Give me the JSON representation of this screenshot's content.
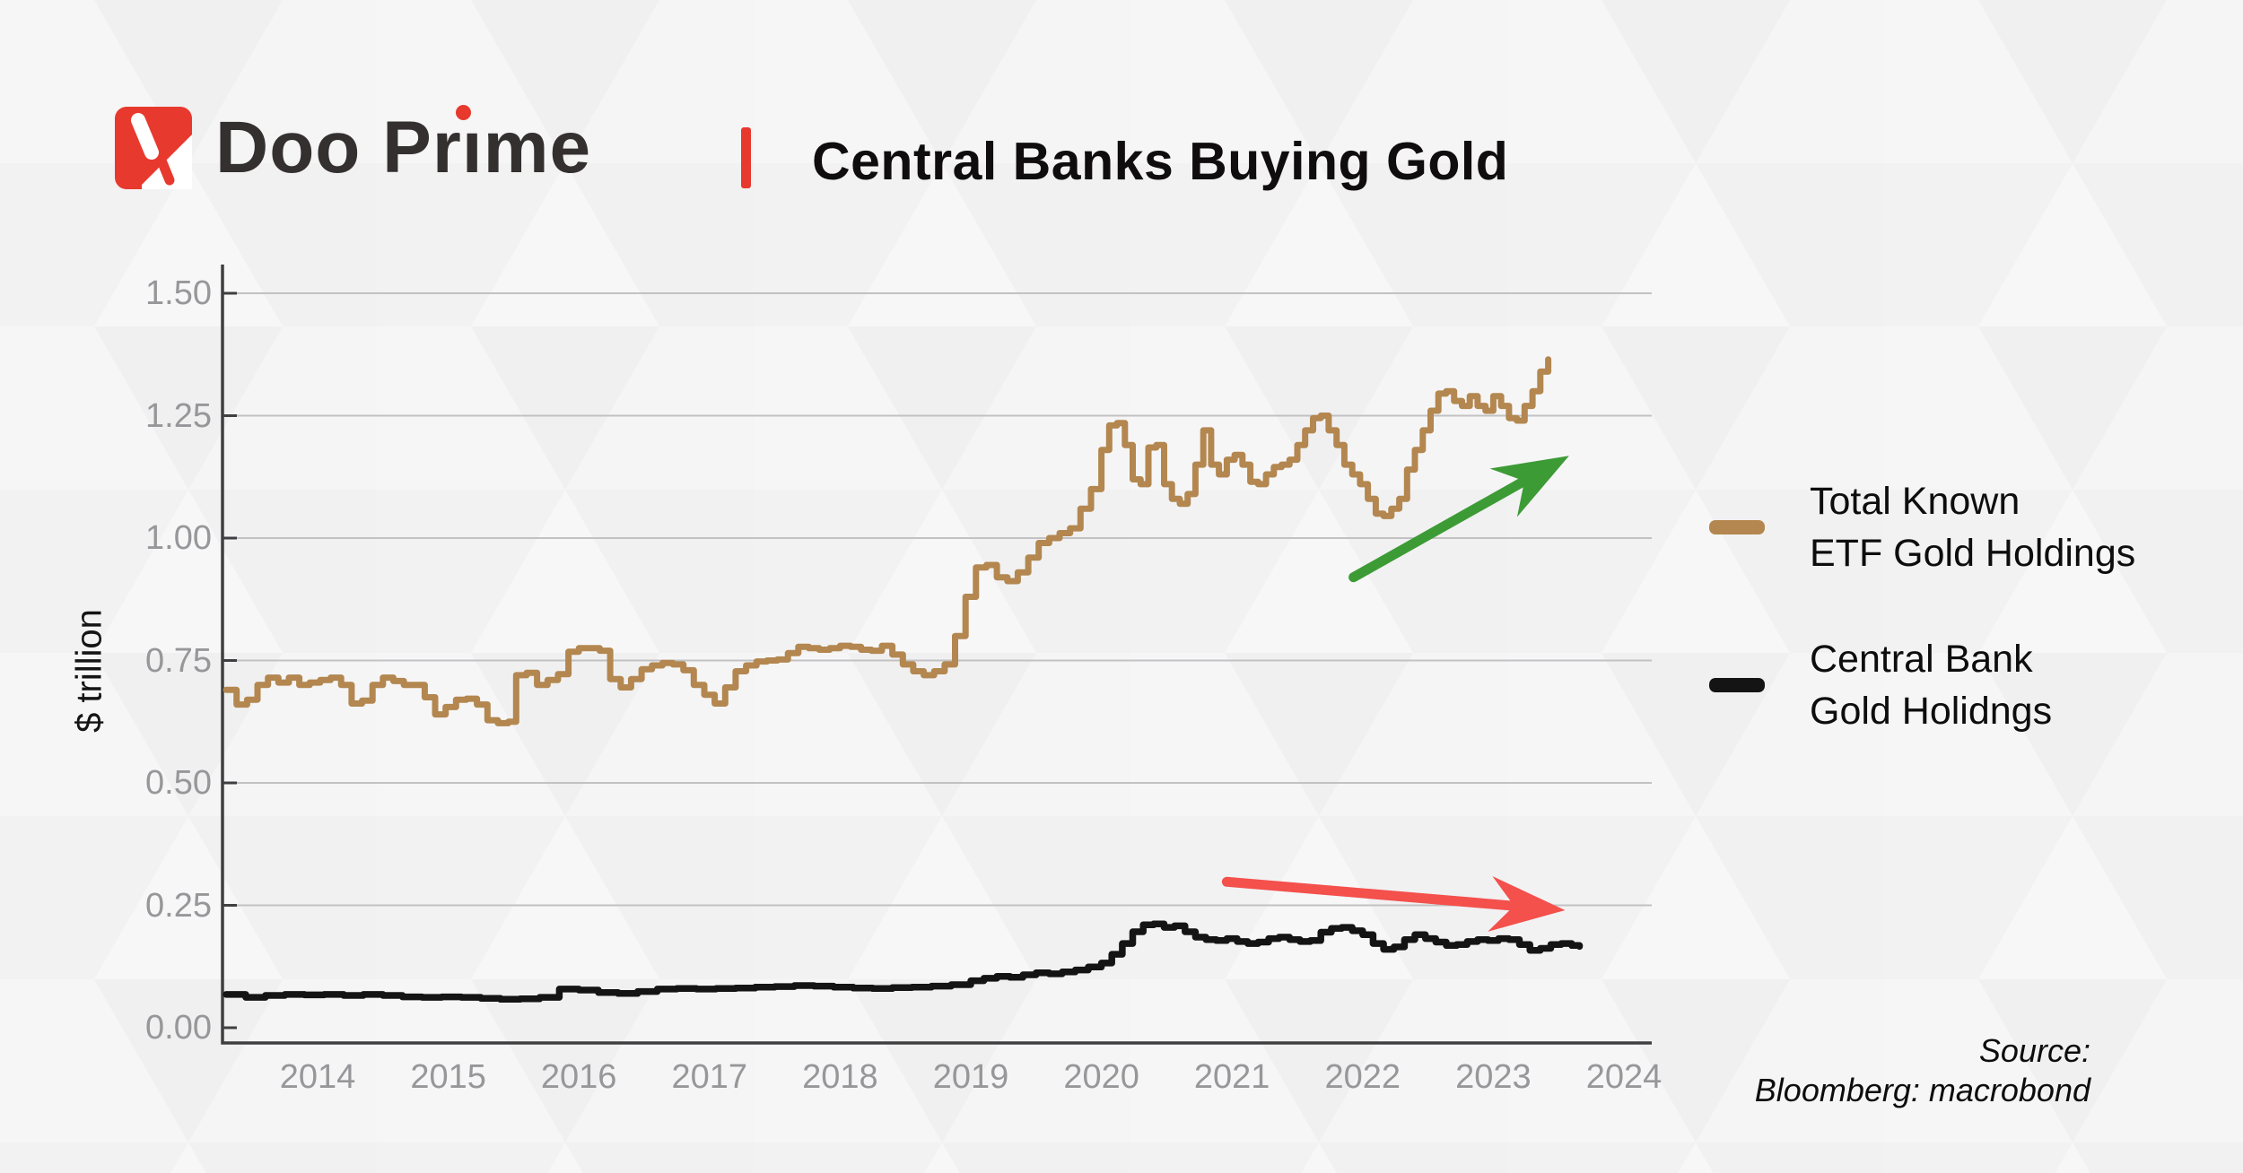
{
  "brand": {
    "name": "Doo Prime",
    "name_parts": {
      "pre": "Doo Pr",
      "dotless_i": "ı",
      "post": "me"
    }
  },
  "header": {
    "title": "Central Banks Buying Gold"
  },
  "source": {
    "line1": "Source:",
    "line2": "Bloomberg: macrobond"
  },
  "legend": {
    "items": [
      {
        "label_line1": "Total Known",
        "label_line2": "ETF Gold Holdings",
        "color": "#b3874f"
      },
      {
        "label_line1": "Central Bank",
        "label_line2": "Gold Holidngs",
        "color": "#141414"
      }
    ]
  },
  "chart_data": {
    "type": "line",
    "title": "Central Banks Buying Gold",
    "xlabel": "",
    "ylabel": "$ trillion",
    "ylim": [
      0,
      1.5
    ],
    "xlim": [
      2013.25,
      2024.2
    ],
    "grid": "horizontal",
    "legend_position": "right",
    "y_ticks": [
      "1.50",
      "1.25",
      "1.00",
      "0.75",
      "0.50",
      "0.25",
      "0.00"
    ],
    "x_ticks": [
      "2014",
      "2015",
      "2016",
      "2017",
      "2018",
      "2019",
      "2020",
      "2021",
      "2022",
      "2023",
      "2024"
    ],
    "colors": {
      "axis": "#3f3f41",
      "gridline": "#c2c2c4",
      "tick_label": "#97979a",
      "arrow_up": "#3d9b35",
      "arrow_down": "#f4504c",
      "brand_red": "#e8392e",
      "brand_dark": "#343030"
    },
    "series": [
      {
        "name": "Total Known ETF Gold Holdings",
        "color": "#b3874f",
        "width": 7,
        "points": [
          [
            2013.3,
            0.69
          ],
          [
            2013.38,
            0.66
          ],
          [
            2013.46,
            0.67
          ],
          [
            2013.54,
            0.7
          ],
          [
            2013.62,
            0.715
          ],
          [
            2013.7,
            0.705
          ],
          [
            2013.78,
            0.715
          ],
          [
            2013.86,
            0.7
          ],
          [
            2013.94,
            0.705
          ],
          [
            2014.02,
            0.71
          ],
          [
            2014.1,
            0.715
          ],
          [
            2014.18,
            0.7
          ],
          [
            2014.26,
            0.662
          ],
          [
            2014.34,
            0.668
          ],
          [
            2014.42,
            0.7
          ],
          [
            2014.5,
            0.715
          ],
          [
            2014.58,
            0.708
          ],
          [
            2014.66,
            0.7
          ],
          [
            2014.74,
            0.7
          ],
          [
            2014.82,
            0.675
          ],
          [
            2014.9,
            0.64
          ],
          [
            2014.98,
            0.655
          ],
          [
            2015.06,
            0.67
          ],
          [
            2015.14,
            0.672
          ],
          [
            2015.22,
            0.66
          ],
          [
            2015.3,
            0.628
          ],
          [
            2015.38,
            0.622
          ],
          [
            2015.46,
            0.625
          ],
          [
            2015.52,
            0.72
          ],
          [
            2015.6,
            0.725
          ],
          [
            2015.68,
            0.7
          ],
          [
            2015.76,
            0.71
          ],
          [
            2015.84,
            0.722
          ],
          [
            2015.92,
            0.768
          ],
          [
            2016.0,
            0.775
          ],
          [
            2016.08,
            0.775
          ],
          [
            2016.16,
            0.77
          ],
          [
            2016.24,
            0.712
          ],
          [
            2016.32,
            0.695
          ],
          [
            2016.4,
            0.712
          ],
          [
            2016.48,
            0.732
          ],
          [
            2016.56,
            0.74
          ],
          [
            2016.64,
            0.745
          ],
          [
            2016.72,
            0.742
          ],
          [
            2016.8,
            0.73
          ],
          [
            2016.88,
            0.7
          ],
          [
            2016.96,
            0.68
          ],
          [
            2017.04,
            0.662
          ],
          [
            2017.12,
            0.695
          ],
          [
            2017.2,
            0.728
          ],
          [
            2017.28,
            0.74
          ],
          [
            2017.36,
            0.748
          ],
          [
            2017.44,
            0.75
          ],
          [
            2017.52,
            0.752
          ],
          [
            2017.6,
            0.765
          ],
          [
            2017.68,
            0.778
          ],
          [
            2017.76,
            0.775
          ],
          [
            2017.84,
            0.772
          ],
          [
            2017.92,
            0.775
          ],
          [
            2018.0,
            0.78
          ],
          [
            2018.08,
            0.778
          ],
          [
            2018.16,
            0.772
          ],
          [
            2018.24,
            0.77
          ],
          [
            2018.32,
            0.78
          ],
          [
            2018.4,
            0.762
          ],
          [
            2018.48,
            0.742
          ],
          [
            2018.56,
            0.728
          ],
          [
            2018.64,
            0.72
          ],
          [
            2018.72,
            0.728
          ],
          [
            2018.8,
            0.742
          ],
          [
            2018.88,
            0.8
          ],
          [
            2018.96,
            0.88
          ],
          [
            2019.04,
            0.94
          ],
          [
            2019.12,
            0.945
          ],
          [
            2019.2,
            0.92
          ],
          [
            2019.28,
            0.912
          ],
          [
            2019.36,
            0.93
          ],
          [
            2019.44,
            0.96
          ],
          [
            2019.52,
            0.99
          ],
          [
            2019.6,
            1.0
          ],
          [
            2019.68,
            1.01
          ],
          [
            2019.76,
            1.02
          ],
          [
            2019.84,
            1.06
          ],
          [
            2019.92,
            1.1
          ],
          [
            2020.0,
            1.18
          ],
          [
            2020.06,
            1.23
          ],
          [
            2020.12,
            1.235
          ],
          [
            2020.18,
            1.19
          ],
          [
            2020.24,
            1.12
          ],
          [
            2020.3,
            1.11
          ],
          [
            2020.36,
            1.185
          ],
          [
            2020.42,
            1.19
          ],
          [
            2020.48,
            1.11
          ],
          [
            2020.54,
            1.08
          ],
          [
            2020.6,
            1.07
          ],
          [
            2020.66,
            1.09
          ],
          [
            2020.72,
            1.15
          ],
          [
            2020.78,
            1.22
          ],
          [
            2020.84,
            1.15
          ],
          [
            2020.9,
            1.13
          ],
          [
            2020.96,
            1.16
          ],
          [
            2021.02,
            1.17
          ],
          [
            2021.08,
            1.15
          ],
          [
            2021.14,
            1.115
          ],
          [
            2021.2,
            1.11
          ],
          [
            2021.26,
            1.13
          ],
          [
            2021.32,
            1.145
          ],
          [
            2021.38,
            1.15
          ],
          [
            2021.44,
            1.16
          ],
          [
            2021.5,
            1.19
          ],
          [
            2021.56,
            1.22
          ],
          [
            2021.62,
            1.245
          ],
          [
            2021.68,
            1.25
          ],
          [
            2021.74,
            1.22
          ],
          [
            2021.8,
            1.19
          ],
          [
            2021.86,
            1.15
          ],
          [
            2021.92,
            1.13
          ],
          [
            2021.98,
            1.11
          ],
          [
            2022.04,
            1.08
          ],
          [
            2022.1,
            1.05
          ],
          [
            2022.16,
            1.045
          ],
          [
            2022.22,
            1.06
          ],
          [
            2022.28,
            1.08
          ],
          [
            2022.34,
            1.14
          ],
          [
            2022.4,
            1.18
          ],
          [
            2022.46,
            1.22
          ],
          [
            2022.52,
            1.26
          ],
          [
            2022.58,
            1.295
          ],
          [
            2022.64,
            1.3
          ],
          [
            2022.7,
            1.28
          ],
          [
            2022.76,
            1.27
          ],
          [
            2022.82,
            1.29
          ],
          [
            2022.88,
            1.27
          ],
          [
            2022.94,
            1.26
          ],
          [
            2023.0,
            1.29
          ],
          [
            2023.06,
            1.27
          ],
          [
            2023.12,
            1.245
          ],
          [
            2023.18,
            1.24
          ],
          [
            2023.24,
            1.27
          ],
          [
            2023.3,
            1.3
          ],
          [
            2023.36,
            1.34
          ],
          [
            2023.42,
            1.365
          ]
        ]
      },
      {
        "name": "Central Bank Gold Holidngs",
        "color": "#141414",
        "width": 7.5,
        "points": [
          [
            2013.3,
            0.068
          ],
          [
            2013.45,
            0.062
          ],
          [
            2013.6,
            0.066
          ],
          [
            2013.75,
            0.068
          ],
          [
            2013.9,
            0.067
          ],
          [
            2014.05,
            0.068
          ],
          [
            2014.2,
            0.066
          ],
          [
            2014.35,
            0.068
          ],
          [
            2014.5,
            0.066
          ],
          [
            2014.65,
            0.063
          ],
          [
            2014.8,
            0.062
          ],
          [
            2014.95,
            0.063
          ],
          [
            2015.1,
            0.062
          ],
          [
            2015.25,
            0.06
          ],
          [
            2015.4,
            0.058
          ],
          [
            2015.55,
            0.059
          ],
          [
            2015.7,
            0.062
          ],
          [
            2015.85,
            0.079
          ],
          [
            2016.0,
            0.077
          ],
          [
            2016.15,
            0.072
          ],
          [
            2016.3,
            0.07
          ],
          [
            2016.45,
            0.074
          ],
          [
            2016.6,
            0.079
          ],
          [
            2016.75,
            0.08
          ],
          [
            2016.9,
            0.079
          ],
          [
            2017.05,
            0.08
          ],
          [
            2017.2,
            0.081
          ],
          [
            2017.35,
            0.083
          ],
          [
            2017.5,
            0.084
          ],
          [
            2017.65,
            0.086
          ],
          [
            2017.8,
            0.085
          ],
          [
            2017.95,
            0.083
          ],
          [
            2018.1,
            0.081
          ],
          [
            2018.25,
            0.08
          ],
          [
            2018.4,
            0.082
          ],
          [
            2018.55,
            0.083
          ],
          [
            2018.7,
            0.085
          ],
          [
            2018.85,
            0.088
          ],
          [
            2019.0,
            0.096
          ],
          [
            2019.1,
            0.101
          ],
          [
            2019.2,
            0.105
          ],
          [
            2019.3,
            0.103
          ],
          [
            2019.4,
            0.108
          ],
          [
            2019.5,
            0.112
          ],
          [
            2019.6,
            0.11
          ],
          [
            2019.7,
            0.114
          ],
          [
            2019.8,
            0.118
          ],
          [
            2019.9,
            0.124
          ],
          [
            2020.0,
            0.132
          ],
          [
            2020.08,
            0.15
          ],
          [
            2020.16,
            0.172
          ],
          [
            2020.24,
            0.196
          ],
          [
            2020.32,
            0.21
          ],
          [
            2020.4,
            0.212
          ],
          [
            2020.48,
            0.205
          ],
          [
            2020.56,
            0.208
          ],
          [
            2020.64,
            0.196
          ],
          [
            2020.72,
            0.185
          ],
          [
            2020.8,
            0.18
          ],
          [
            2020.88,
            0.178
          ],
          [
            2020.96,
            0.182
          ],
          [
            2021.04,
            0.176
          ],
          [
            2021.12,
            0.172
          ],
          [
            2021.2,
            0.175
          ],
          [
            2021.28,
            0.182
          ],
          [
            2021.36,
            0.185
          ],
          [
            2021.44,
            0.18
          ],
          [
            2021.52,
            0.176
          ],
          [
            2021.6,
            0.178
          ],
          [
            2021.68,
            0.195
          ],
          [
            2021.76,
            0.203
          ],
          [
            2021.84,
            0.205
          ],
          [
            2021.92,
            0.198
          ],
          [
            2022.0,
            0.19
          ],
          [
            2022.08,
            0.172
          ],
          [
            2022.16,
            0.16
          ],
          [
            2022.24,
            0.165
          ],
          [
            2022.32,
            0.18
          ],
          [
            2022.4,
            0.19
          ],
          [
            2022.48,
            0.182
          ],
          [
            2022.56,
            0.175
          ],
          [
            2022.64,
            0.168
          ],
          [
            2022.72,
            0.17
          ],
          [
            2022.8,
            0.176
          ],
          [
            2022.88,
            0.18
          ],
          [
            2022.96,
            0.178
          ],
          [
            2023.04,
            0.182
          ],
          [
            2023.12,
            0.18
          ],
          [
            2023.2,
            0.17
          ],
          [
            2023.28,
            0.158
          ],
          [
            2023.36,
            0.162
          ],
          [
            2023.44,
            0.17
          ],
          [
            2023.52,
            0.172
          ],
          [
            2023.6,
            0.168
          ],
          [
            2023.66,
            0.166
          ]
        ]
      }
    ],
    "annotations": [
      {
        "kind": "trend-arrow",
        "direction": "up",
        "color": "#3d9b35",
        "x1": 2021.93,
        "y1": 0.92,
        "x2": 2023.58,
        "y2": 1.168
      },
      {
        "kind": "trend-arrow",
        "direction": "flat-down",
        "color": "#f4504c",
        "x1": 2020.96,
        "y1": 0.298,
        "x2": 2023.55,
        "y2": 0.24
      }
    ]
  }
}
